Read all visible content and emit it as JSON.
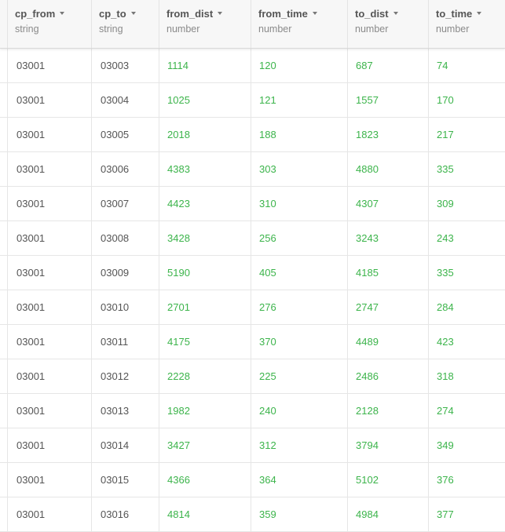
{
  "columns": [
    {
      "name": "cp_from",
      "type": "string"
    },
    {
      "name": "cp_to",
      "type": "string"
    },
    {
      "name": "from_dist",
      "type": "number"
    },
    {
      "name": "from_time",
      "type": "number"
    },
    {
      "name": "to_dist",
      "type": "number"
    },
    {
      "name": "to_time",
      "type": "number"
    }
  ],
  "rows": [
    [
      "03001",
      "03003",
      "1114",
      "120",
      "687",
      "74"
    ],
    [
      "03001",
      "03004",
      "1025",
      "121",
      "1557",
      "170"
    ],
    [
      "03001",
      "03005",
      "2018",
      "188",
      "1823",
      "217"
    ],
    [
      "03001",
      "03006",
      "4383",
      "303",
      "4880",
      "335"
    ],
    [
      "03001",
      "03007",
      "4423",
      "310",
      "4307",
      "309"
    ],
    [
      "03001",
      "03008",
      "3428",
      "256",
      "3243",
      "243"
    ],
    [
      "03001",
      "03009",
      "5190",
      "405",
      "4185",
      "335"
    ],
    [
      "03001",
      "03010",
      "2701",
      "276",
      "2747",
      "284"
    ],
    [
      "03001",
      "03011",
      "4175",
      "370",
      "4489",
      "423"
    ],
    [
      "03001",
      "03012",
      "2228",
      "225",
      "2486",
      "318"
    ],
    [
      "03001",
      "03013",
      "1982",
      "240",
      "2128",
      "274"
    ],
    [
      "03001",
      "03014",
      "3427",
      "312",
      "3794",
      "349"
    ],
    [
      "03001",
      "03015",
      "4366",
      "364",
      "5102",
      "376"
    ],
    [
      "03001",
      "03016",
      "4814",
      "359",
      "4984",
      "377"
    ]
  ],
  "colors": {
    "string_text": "#555555",
    "number_text": "#3cb44b",
    "header_bg": "#f7f7f7"
  }
}
